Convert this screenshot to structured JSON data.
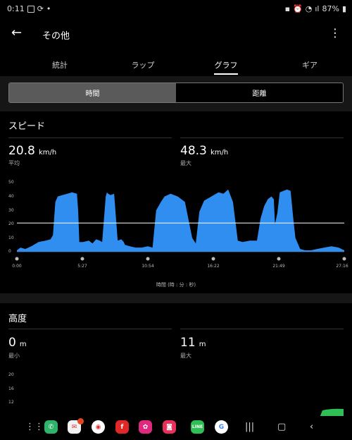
{
  "status_bar": {
    "time": "0:11",
    "battery": "87%"
  },
  "header": {
    "title": "その他"
  },
  "tabs": [
    {
      "label": "統計"
    },
    {
      "label": "ラップ"
    },
    {
      "label": "グラフ"
    },
    {
      "label": "ギア"
    }
  ],
  "toggle": {
    "left": "時間",
    "right": "距離"
  },
  "speed": {
    "title": "スピード",
    "avg_value": "20.8",
    "avg_unit": "km/h",
    "avg_label": "平均",
    "max_value": "48.3",
    "max_unit": "km/h",
    "max_label": "最大"
  },
  "chart_data": {
    "type": "area",
    "xlabel": "時間 (時 : 分 : 秒)",
    "x_ticks": [
      "0:00",
      "5:27",
      "10:54",
      "16:22",
      "21:49",
      "27:16"
    ],
    "y_ticks": [
      "50",
      "40",
      "30",
      "20",
      "10",
      "0"
    ],
    "ylim": [
      0,
      50
    ],
    "xlim": [
      0,
      27.27
    ],
    "average": 20.8,
    "color": "#2f8ef0",
    "series": [
      {
        "x": [
          0,
          0.3,
          0.7,
          1.2,
          1.8,
          2.4,
          2.8,
          3.0,
          3.2,
          3.4,
          3.8,
          4.2,
          4.6,
          5.0,
          5.1,
          5.2,
          5.5,
          6.0,
          6.3,
          6.6,
          6.9,
          7.1,
          7.4,
          7.5,
          7.6,
          7.8,
          8.1,
          8.4,
          8.7,
          8.9,
          9.0,
          9.4,
          9.9,
          10.4,
          10.9,
          11.3,
          11.6,
          12.0,
          12.3,
          12.8,
          13.4,
          14.0,
          14.6,
          14.9,
          15.2,
          15.6,
          16.0,
          16.4,
          16.8,
          17.2,
          17.6,
          18.0,
          18.4,
          18.8,
          19.4,
          20.0,
          20.3,
          20.6,
          20.9,
          21.2,
          21.4,
          21.5,
          21.7,
          21.9,
          22.2,
          22.5,
          22.8,
          23.0,
          23.2,
          23.6,
          24.0,
          24.5,
          25.0,
          25.6,
          26.2,
          26.8,
          27.27
        ],
        "values": [
          1,
          3,
          2,
          4,
          7,
          8,
          9,
          12,
          36,
          40,
          41,
          42,
          43,
          42,
          30,
          7,
          7,
          8,
          6,
          9,
          8,
          7,
          40,
          43,
          42,
          41,
          42,
          8,
          9,
          7,
          5,
          4,
          3,
          3,
          4,
          3,
          30,
          36,
          40,
          42,
          40,
          36,
          10,
          6,
          29,
          37,
          39,
          41,
          43,
          42,
          45,
          36,
          8,
          7,
          8,
          8,
          24,
          33,
          38,
          40,
          38,
          20,
          28,
          43,
          44,
          45,
          44,
          26,
          10,
          2,
          1,
          1,
          2,
          3,
          4,
          3,
          1
        ]
      }
    ]
  },
  "altitude": {
    "title": "高度",
    "min_value": "0",
    "min_unit": "m",
    "min_label": "最小",
    "max_value": "11",
    "max_unit": "m",
    "max_label": "最大",
    "y_ticks": [
      "20",
      "16",
      "12"
    ]
  },
  "dock": {
    "mail_badge": "5",
    "apps": [
      {
        "name": "phone",
        "color": "#2fb36b"
      },
      {
        "name": "mail",
        "color": "#f2f2f2"
      },
      {
        "name": "chrome",
        "color": "#ffffff"
      },
      {
        "name": "flipboard",
        "color": "#e12828"
      },
      {
        "name": "flower",
        "color": "#e0287e"
      },
      {
        "name": "camera",
        "color": "#e8305a"
      },
      {
        "name": "line",
        "color": "#2fbf54"
      },
      {
        "name": "google",
        "color": "#ffffff"
      }
    ]
  }
}
